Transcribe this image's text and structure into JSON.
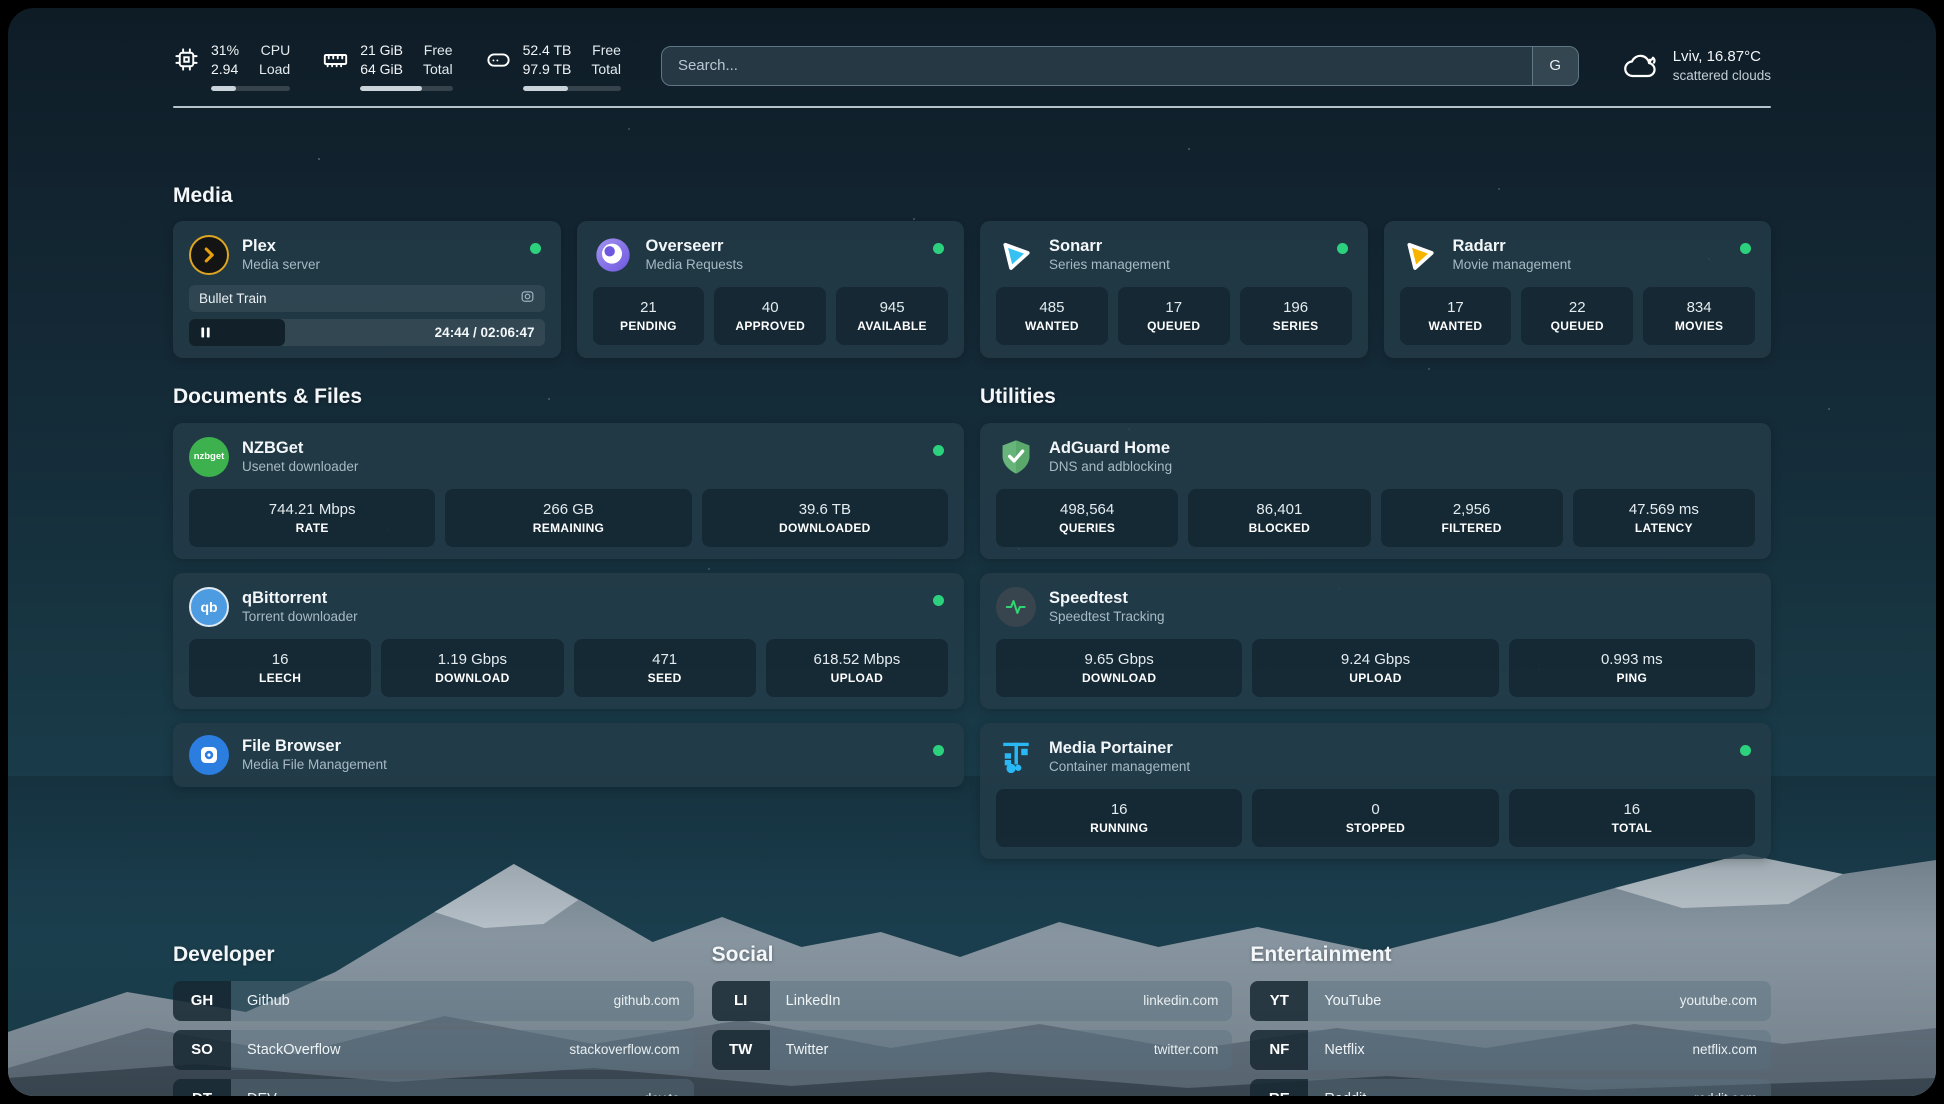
{
  "header": {
    "stats": [
      {
        "icon": "cpu-icon",
        "values": [
          "31%",
          "2.94"
        ],
        "labels": [
          "CPU",
          "Load"
        ],
        "bar_percent": 31
      },
      {
        "icon": "ram-icon",
        "values": [
          "21 GiB",
          "64 GiB"
        ],
        "labels": [
          "Free",
          "Total"
        ],
        "bar_percent": 67
      },
      {
        "icon": "disk-icon",
        "values": [
          "52.4 TB",
          "97.9 TB"
        ],
        "labels": [
          "Free",
          "Total"
        ],
        "bar_percent": 46
      }
    ],
    "search": {
      "placeholder": "Search...",
      "engine_button": "G"
    },
    "weather": {
      "icon": "cloud-icon",
      "location": "Lviv, 16.87°C",
      "condition": "scattered clouds"
    }
  },
  "sections": {
    "media": {
      "title": "Media",
      "apps": [
        {
          "name": "Plex",
          "desc": "Media server",
          "icon": "plex-logo",
          "online": true,
          "now_playing": {
            "title": "Bullet Train",
            "state": "paused",
            "time": "24:44 / 02:06:47"
          }
        },
        {
          "name": "Overseerr",
          "desc": "Media Requests",
          "icon": "overseerr-logo",
          "online": true,
          "stats": [
            {
              "value": "21",
              "label": "PENDING"
            },
            {
              "value": "40",
              "label": "APPROVED"
            },
            {
              "value": "945",
              "label": "AVAILABLE"
            }
          ]
        },
        {
          "name": "Sonarr",
          "desc": "Series management",
          "icon": "sonarr-logo",
          "online": true,
          "stats": [
            {
              "value": "485",
              "label": "WANTED"
            },
            {
              "value": "17",
              "label": "QUEUED"
            },
            {
              "value": "196",
              "label": "SERIES"
            }
          ]
        },
        {
          "name": "Radarr",
          "desc": "Movie management",
          "icon": "radarr-logo",
          "online": true,
          "stats": [
            {
              "value": "17",
              "label": "WANTED"
            },
            {
              "value": "22",
              "label": "QUEUED"
            },
            {
              "value": "834",
              "label": "MOVIES"
            }
          ]
        }
      ]
    },
    "documents": {
      "title": "Documents & Files",
      "apps": [
        {
          "name": "NZBGet",
          "desc": "Usenet downloader",
          "icon": "nzbget-logo",
          "online": true,
          "stats": [
            {
              "value": "744.21 Mbps",
              "label": "RATE"
            },
            {
              "value": "266 GB",
              "label": "REMAINING"
            },
            {
              "value": "39.6 TB",
              "label": "DOWNLOADED"
            }
          ]
        },
        {
          "name": "qBittorrent",
          "desc": "Torrent downloader",
          "icon": "qbittorrent-logo",
          "online": true,
          "stats": [
            {
              "value": "16",
              "label": "LEECH"
            },
            {
              "value": "1.19 Gbps",
              "label": "DOWNLOAD"
            },
            {
              "value": "471",
              "label": "SEED"
            },
            {
              "value": "618.52 Mbps",
              "label": "UPLOAD"
            }
          ]
        },
        {
          "name": "File Browser",
          "desc": "Media File Management",
          "icon": "filebrowser-logo",
          "online": true
        }
      ]
    },
    "utilities": {
      "title": "Utilities",
      "apps": [
        {
          "name": "AdGuard Home",
          "desc": "DNS and adblocking",
          "icon": "adguard-logo",
          "stats": [
            {
              "value": "498,564",
              "label": "QUERIES"
            },
            {
              "value": "86,401",
              "label": "BLOCKED"
            },
            {
              "value": "2,956",
              "label": "FILTERED"
            },
            {
              "value": "47.569 ms",
              "label": "LATENCY"
            }
          ]
        },
        {
          "name": "Speedtest",
          "desc": "Speedtest Tracking",
          "icon": "speedtest-logo",
          "stats": [
            {
              "value": "9.65 Gbps",
              "label": "DOWNLOAD"
            },
            {
              "value": "9.24 Gbps",
              "label": "UPLOAD"
            },
            {
              "value": "0.993 ms",
              "label": "PING"
            }
          ]
        },
        {
          "name": "Media Portainer",
          "desc": "Container management",
          "icon": "portainer-logo",
          "online": true,
          "stats": [
            {
              "value": "16",
              "label": "RUNNING"
            },
            {
              "value": "0",
              "label": "STOPPED"
            },
            {
              "value": "16",
              "label": "TOTAL"
            }
          ]
        }
      ]
    },
    "bookmarks": [
      {
        "title": "Developer",
        "links": [
          {
            "abbr": "GH",
            "name": "Github",
            "url": "github.com"
          },
          {
            "abbr": "SO",
            "name": "StackOverflow",
            "url": "stackoverflow.com"
          },
          {
            "abbr": "DT",
            "name": "DEV",
            "url": "dev.to"
          }
        ]
      },
      {
        "title": "Social",
        "links": [
          {
            "abbr": "LI",
            "name": "LinkedIn",
            "url": "linkedin.com"
          },
          {
            "abbr": "TW",
            "name": "Twitter",
            "url": "twitter.com"
          }
        ]
      },
      {
        "title": "Entertainment",
        "links": [
          {
            "abbr": "YT",
            "name": "YouTube",
            "url": "youtube.com"
          },
          {
            "abbr": "NF",
            "name": "Netflix",
            "url": "netflix.com"
          },
          {
            "abbr": "RE",
            "name": "Reddit",
            "url": "reddit.com"
          }
        ]
      }
    ]
  },
  "colors": {
    "status_online": "#2cd17e",
    "plex_amber": "#e5a00d",
    "sonarr_blue": "#35c2f2",
    "radarr_amber": "#f7b500",
    "nzbget_green": "#3db14d",
    "qbittorrent_blue": "#4d9be0",
    "filebrowser_blue": "#2b7de0",
    "adguard_green": "#67b57a",
    "portainer_blue": "#29b8f5"
  }
}
